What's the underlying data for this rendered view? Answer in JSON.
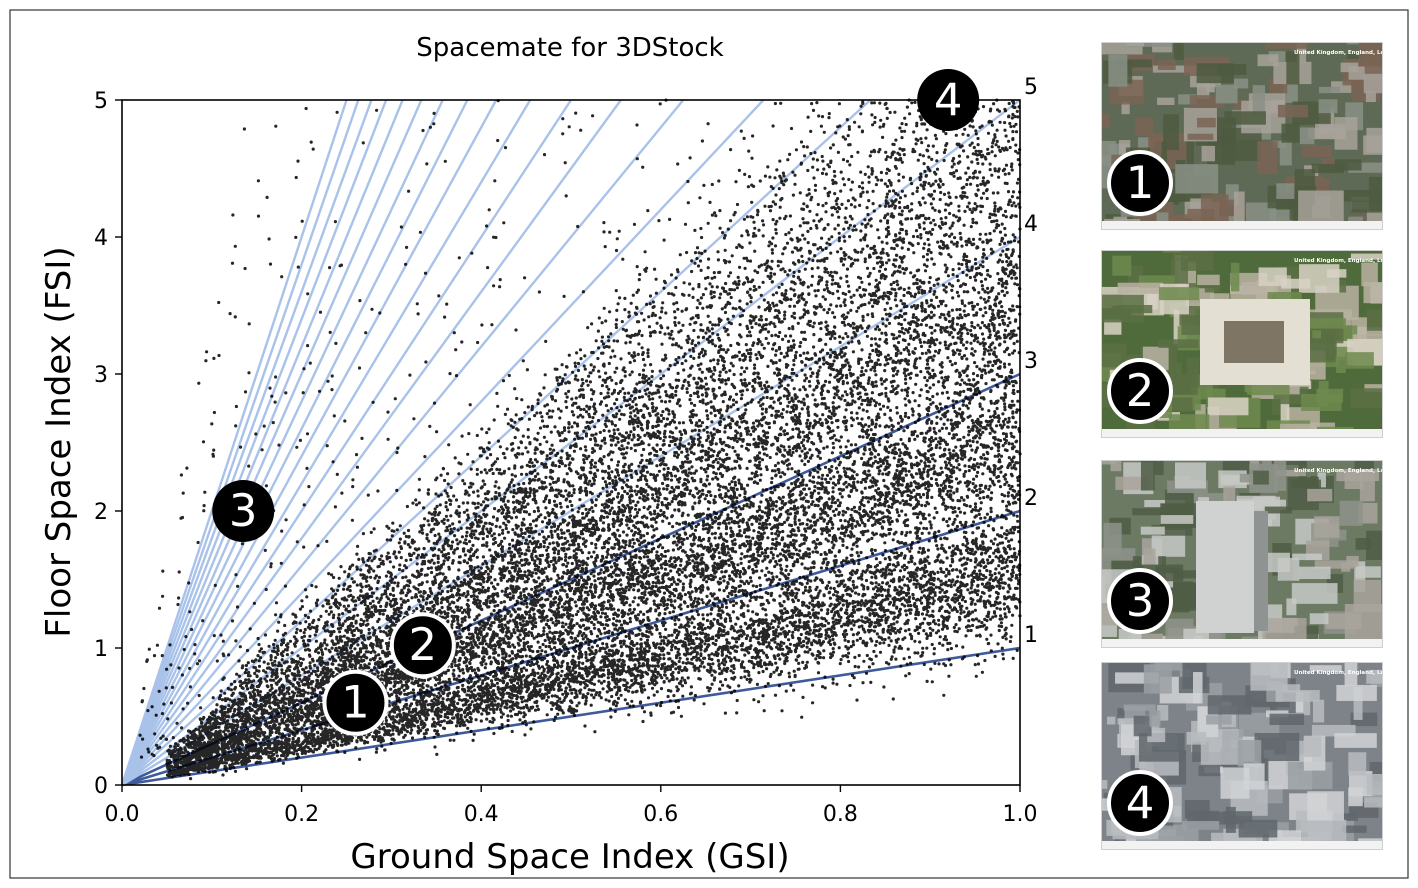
{
  "chart_data": {
    "type": "scatter",
    "title": "Spacemate for 3DStock",
    "xlabel": "Ground Space Index (GSI)",
    "ylabel": "Floor Space Index (FSI)",
    "xlim": [
      0.0,
      1.0
    ],
    "ylim": [
      0,
      5
    ],
    "x_ticks": [
      "0.0",
      "0.2",
      "0.4",
      "0.6",
      "0.8",
      "1.0"
    ],
    "y_ticks": [
      "0",
      "1",
      "2",
      "3",
      "4",
      "5"
    ],
    "grid": false,
    "reference_lines": {
      "storeys": [
        1,
        2,
        3,
        4,
        5,
        6,
        7,
        8,
        9,
        10,
        11,
        12,
        13,
        14,
        15,
        16,
        17,
        18,
        19,
        20
      ],
      "right_labels": [
        "1",
        "2",
        "3",
        "4",
        "5"
      ],
      "dark_storeys": [
        1,
        2,
        3
      ],
      "color_light": "#a9c2ea",
      "color_dark": "#3f5a9a"
    },
    "point_color": "#000000",
    "clusters": [
      {
        "storeys": 1,
        "gsi_range": [
          0.05,
          1.0
        ],
        "note_marker": "1"
      },
      {
        "storeys": 2,
        "gsi_range": [
          0.05,
          1.0
        ],
        "note_marker": "2"
      },
      {
        "storeys": 3,
        "gsi_range": [
          0.05,
          1.0
        ]
      },
      {
        "storeys": 4,
        "gsi_range": [
          0.05,
          1.0
        ]
      },
      {
        "storeys": 5,
        "gsi_range": [
          0.1,
          1.0
        ]
      }
    ],
    "markers": [
      {
        "label": "1",
        "x": 0.26,
        "y": 0.6,
        "style": "outline"
      },
      {
        "label": "2",
        "x": 0.335,
        "y": 1.02,
        "style": "outline"
      },
      {
        "label": "3",
        "x": 0.135,
        "y": 2.0,
        "style": "filled"
      },
      {
        "label": "4",
        "x": 0.92,
        "y": 5.0,
        "style": "filled"
      }
    ]
  },
  "photos": [
    {
      "label": "1",
      "caption": "United Kingdom, England, London, NW6"
    },
    {
      "label": "2",
      "caption": "United Kingdom, England, London, NW3"
    },
    {
      "label": "3",
      "caption": "United Kingdom, England, London"
    },
    {
      "label": "4",
      "caption": "United Kingdom, England, London, EC1"
    }
  ],
  "colors": {
    "background": "#ffffff",
    "axis": "#000000",
    "border": "#222222"
  }
}
